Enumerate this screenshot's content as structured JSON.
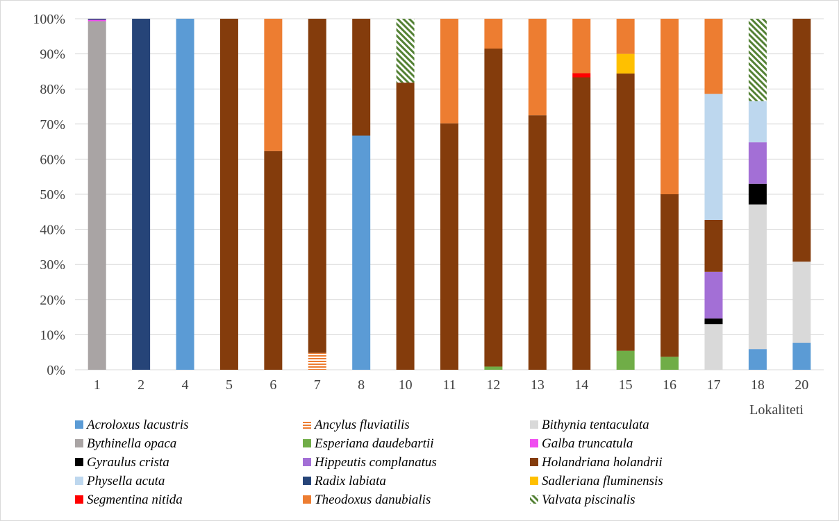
{
  "chart_data": {
    "type": "bar",
    "stacked": "percent",
    "xlabel": "Lokaliteti",
    "ylabel": "",
    "ylim": [
      0,
      100
    ],
    "y_ticks": [
      "0%",
      "10%",
      "20%",
      "30%",
      "40%",
      "50%",
      "60%",
      "70%",
      "80%",
      "90%",
      "100%"
    ],
    "grid": "horizontal",
    "legend_position": "bottom",
    "categories": [
      "1",
      "2",
      "4",
      "5",
      "6",
      "7",
      "8",
      "10",
      "11",
      "12",
      "13",
      "14",
      "15",
      "16",
      "17",
      "18",
      "20"
    ],
    "series": [
      {
        "name": "Acroloxus lacustris",
        "color": "#5B9BD5",
        "pattern": "solid",
        "values": [
          0,
          0,
          100,
          0,
          0,
          0,
          66.7,
          0,
          0,
          0,
          0,
          0,
          0,
          0,
          0,
          5.9,
          7.7
        ]
      },
      {
        "name": "Ancylus fluviatilis",
        "color": "#ED7D31",
        "pattern": "horizontal-stripes",
        "values": [
          0,
          0,
          0,
          0,
          0,
          4.8,
          0,
          0,
          0,
          0,
          0,
          0,
          0,
          0,
          0,
          0,
          0
        ]
      },
      {
        "name": "Bithynia tentaculata",
        "color": "#D9D9D9",
        "pattern": "solid",
        "values": [
          0,
          0,
          0,
          0,
          0,
          0,
          0,
          0,
          0,
          0,
          0,
          0,
          0,
          0,
          13.0,
          41.2,
          23.1
        ]
      },
      {
        "name": "Bythinella opaca",
        "color": "#A9A4A4",
        "pattern": "solid",
        "values": [
          99.3,
          0,
          0,
          0,
          0,
          0,
          0,
          0,
          0,
          0,
          0,
          0,
          0,
          0,
          0,
          0,
          0
        ]
      },
      {
        "name": "Esperiana daudebartii",
        "color": "#70AD47",
        "pattern": "solid",
        "values": [
          0,
          0,
          0,
          0,
          0,
          0,
          0,
          0,
          0,
          0.9,
          0,
          0,
          5.4,
          3.7,
          0,
          0,
          0
        ]
      },
      {
        "name": "Galba truncatula",
        "color": "#F04CF0",
        "pattern": "solid",
        "values": [
          0.4,
          0,
          0,
          0,
          0,
          0,
          0,
          0,
          0,
          0,
          0,
          0,
          0,
          0,
          0,
          0,
          0
        ]
      },
      {
        "name": "Gyraulus crista",
        "color": "#000000",
        "pattern": "solid",
        "values": [
          0,
          0,
          0,
          0,
          0,
          0,
          0,
          0,
          0,
          0,
          0,
          0,
          0,
          0,
          1.6,
          5.9,
          0
        ]
      },
      {
        "name": "Hippeutis complanatus",
        "color": "#A36FD6",
        "pattern": "solid",
        "values": [
          0,
          0,
          0,
          0,
          0,
          0,
          0,
          0,
          0,
          0,
          0,
          0,
          0,
          0,
          13.3,
          11.8,
          0
        ]
      },
      {
        "name": "Holandriana holandrii",
        "color": "#843C0C",
        "pattern": "solid",
        "values": [
          0,
          0,
          0,
          100,
          62.3,
          95.2,
          33.3,
          81.8,
          70.2,
          90.6,
          72.5,
          83.3,
          79.0,
          46.3,
          14.8,
          0,
          69.2
        ]
      },
      {
        "name": "Physella acuta",
        "color": "#BDD7EE",
        "pattern": "solid",
        "values": [
          0,
          0,
          0,
          0,
          0,
          0,
          0,
          0,
          0,
          0,
          0,
          0,
          0,
          0,
          35.9,
          11.7,
          0
        ]
      },
      {
        "name": "Radix labiata",
        "color": "#264478",
        "pattern": "solid",
        "values": [
          0.3,
          100,
          0,
          0,
          0,
          0,
          0,
          0,
          0,
          0,
          0,
          0,
          0,
          0,
          0,
          0,
          0
        ]
      },
      {
        "name": "Sadleriana fluminensis",
        "color": "#FFC000",
        "pattern": "solid",
        "values": [
          0,
          0,
          0,
          0,
          0,
          0,
          0,
          0,
          0,
          0,
          0,
          0,
          5.6,
          0,
          0,
          0,
          0
        ]
      },
      {
        "name": "Segmentina nitida",
        "color": "#FF0000",
        "pattern": "solid",
        "values": [
          0,
          0,
          0,
          0,
          0,
          0,
          0,
          0,
          0,
          0,
          0,
          1.2,
          0,
          0,
          0,
          0,
          0
        ]
      },
      {
        "name": "Theodoxus danubialis",
        "color": "#ED7D31",
        "pattern": "solid",
        "values": [
          0,
          0,
          0,
          0,
          37.7,
          0,
          0,
          0,
          29.8,
          8.5,
          27.5,
          15.5,
          10.0,
          50.0,
          21.4,
          0,
          0
        ]
      },
      {
        "name": "Valvata piscinalis",
        "color": "#548235",
        "pattern": "diagonal-stripes",
        "values": [
          0,
          0,
          0,
          0,
          0,
          0,
          0,
          18.2,
          0,
          0,
          0,
          0,
          0,
          0,
          0,
          23.5,
          0
        ]
      }
    ]
  }
}
